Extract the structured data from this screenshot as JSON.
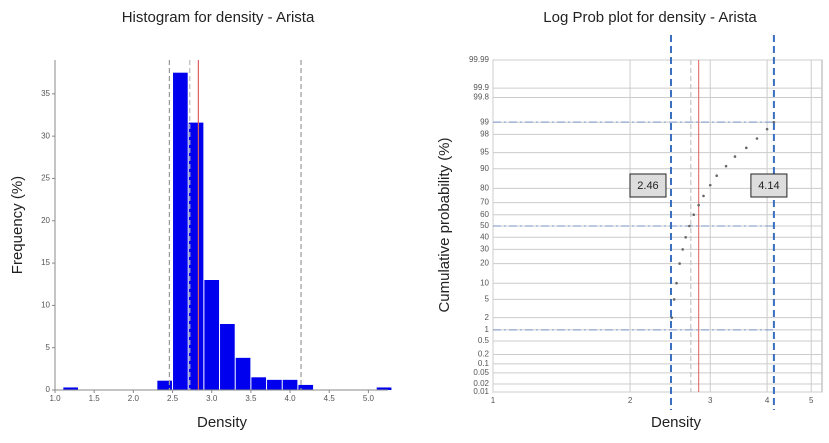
{
  "chart_data": [
    {
      "type": "histogram",
      "title": "Histogram for density - Arista",
      "xlabel": "Density",
      "ylabel": "Frequency (%)",
      "bins": [
        1.1,
        1.3,
        1.5,
        1.7,
        1.9,
        2.1,
        2.3,
        2.5,
        2.7,
        2.9,
        3.1,
        3.3,
        3.5,
        3.7,
        3.9,
        4.1,
        4.3,
        4.5,
        4.7,
        4.9,
        5.1,
        5.3
      ],
      "values": [
        0.3,
        0,
        0,
        0,
        0,
        0,
        1.1,
        37.5,
        31.6,
        13.0,
        7.8,
        3.8,
        1.5,
        1.2,
        1.2,
        0.6,
        0,
        0,
        0,
        0,
        0.3
      ],
      "color": "#0000ee",
      "xlim": [
        1.0,
        5.25
      ],
      "ylim": [
        0,
        39
      ],
      "xticks": [
        {
          "value": 1,
          "label": "1.0"
        },
        1.5,
        {
          "value": 2,
          "label": "2.0"
        },
        2.5,
        {
          "value": 3,
          "label": "3.0"
        },
        3.5,
        {
          "value": 4,
          "label": "4.0"
        },
        4.5,
        {
          "value": 5,
          "label": "5.0"
        }
      ],
      "yticks": [
        0,
        5,
        10,
        15,
        20,
        25,
        30,
        35
      ],
      "vlines": [
        {
          "value": 2.46,
          "color": "#999999"
        },
        {
          "value": 2.72,
          "color": "#bbbbbb"
        },
        {
          "value": 2.83,
          "color": "#e06060"
        },
        {
          "value": 4.14,
          "color": "#999999"
        }
      ]
    },
    {
      "type": "probability",
      "title": "Log Prob plot for density - Arista",
      "xlabel": "Density",
      "ylabel": "Cumulative probability (%)",
      "x": [
        2.47,
        2.5,
        2.53,
        2.57,
        2.61,
        2.65,
        2.7,
        2.76,
        2.83,
        2.9,
        3.0,
        3.1,
        3.25,
        3.4,
        3.6,
        3.8,
        4.0,
        4.14
      ],
      "values": [
        2,
        5,
        10,
        20,
        30,
        40,
        50,
        60,
        68,
        75,
        82,
        87,
        91,
        94,
        96,
        97.5,
        98.5,
        99
      ],
      "color": "#666666",
      "log_x": true,
      "grid": true,
      "xlim": [
        1,
        5.28
      ],
      "ylim": [
        0.01,
        99.99
      ],
      "xticks": [
        1,
        2,
        3,
        4,
        5
      ],
      "yticks": [
        0.01,
        0.02,
        0.05,
        0.1,
        0.2,
        0.5,
        1,
        2,
        5,
        10,
        20,
        30,
        40,
        50,
        60,
        70,
        80,
        90,
        95,
        98,
        99,
        99.8,
        99.9,
        99.99
      ],
      "limits": [
        2.46,
        4.14
      ],
      "limit_color": "#3a6fc0",
      "hlines": [
        1,
        50,
        99
      ],
      "vlines": [
        {
          "value": 2.83,
          "color": "#e06060"
        },
        {
          "value": 2.72,
          "color": "#bbbbbb"
        }
      ]
    }
  ]
}
